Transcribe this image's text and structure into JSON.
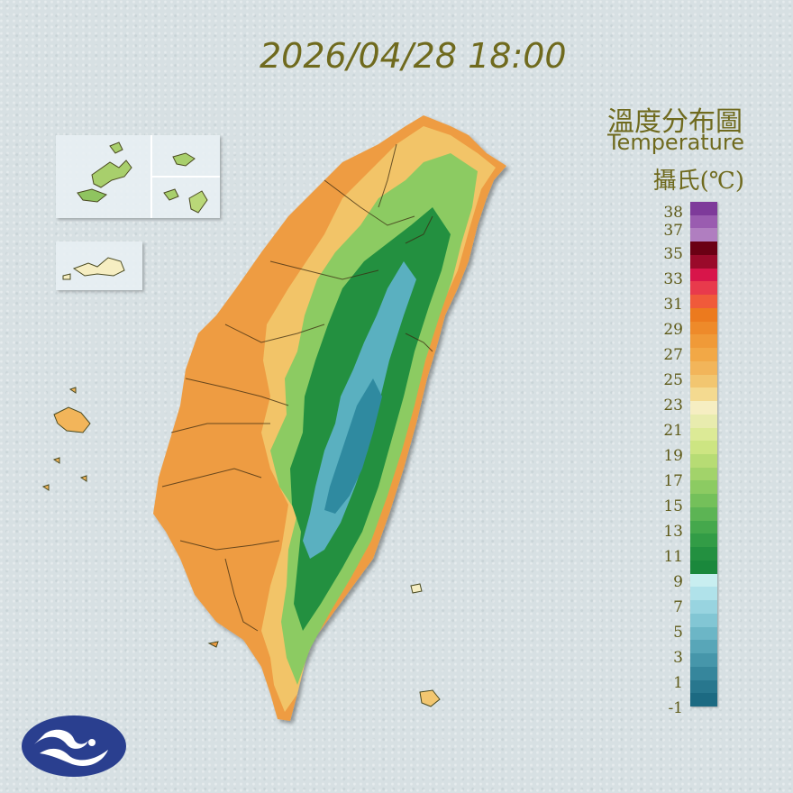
{
  "header": {
    "timestamp": "2026/04/28 18:00"
  },
  "legend": {
    "title_zh": "溫度分布圖",
    "title_en": "Temperature",
    "unit": "攝氏(℃)",
    "scale_labels": [
      "38",
      "37",
      "35",
      "33",
      "31",
      "29",
      "27",
      "25",
      "23",
      "21",
      "19",
      "17",
      "15",
      "13",
      "11",
      "9",
      "7",
      "5",
      "3",
      "1",
      "-1"
    ],
    "bands": [
      {
        "color": "#7e3a9a"
      },
      {
        "color": "#9a5cb0"
      },
      {
        "color": "#b07ec0"
      },
      {
        "color": "#6b0014"
      },
      {
        "color": "#9a0a2a"
      },
      {
        "color": "#d8154a"
      },
      {
        "color": "#e83a4c"
      },
      {
        "color": "#f05a3a"
      },
      {
        "color": "#ec7a1e"
      },
      {
        "color": "#ee8a2a"
      },
      {
        "color": "#f09a38"
      },
      {
        "color": "#f2a846"
      },
      {
        "color": "#f2b55a"
      },
      {
        "color": "#f2c670"
      },
      {
        "color": "#f4da90"
      },
      {
        "color": "#f6eec2"
      },
      {
        "color": "#e8ecae"
      },
      {
        "color": "#dcea96"
      },
      {
        "color": "#cde582"
      },
      {
        "color": "#b7dc74"
      },
      {
        "color": "#a2d36a"
      },
      {
        "color": "#8ccb62"
      },
      {
        "color": "#74c05a"
      },
      {
        "color": "#5cb454"
      },
      {
        "color": "#45a84c"
      },
      {
        "color": "#329c46"
      },
      {
        "color": "#239040"
      },
      {
        "color": "#1a883c"
      },
      {
        "color": "#c8eef0"
      },
      {
        "color": "#b0e2ea"
      },
      {
        "color": "#98d4e0"
      },
      {
        "color": "#82c6d4"
      },
      {
        "color": "#6cb6c6"
      },
      {
        "color": "#58a6b8"
      },
      {
        "color": "#4696aa"
      },
      {
        "color": "#36869c"
      },
      {
        "color": "#28778e"
      },
      {
        "color": "#1c6a82"
      }
    ]
  },
  "map": {
    "region_colors": {
      "warm": "#ee9c42",
      "mild": "#f2c468",
      "cool": "#8ccb62",
      "cold": "#239040",
      "alpine": "#5ab0c0",
      "summit": "#2f8aa0",
      "sea": "#d7e0e3"
    }
  },
  "logo": {
    "icon": "weather-bureau-logo",
    "color": "#2a3f8f"
  }
}
